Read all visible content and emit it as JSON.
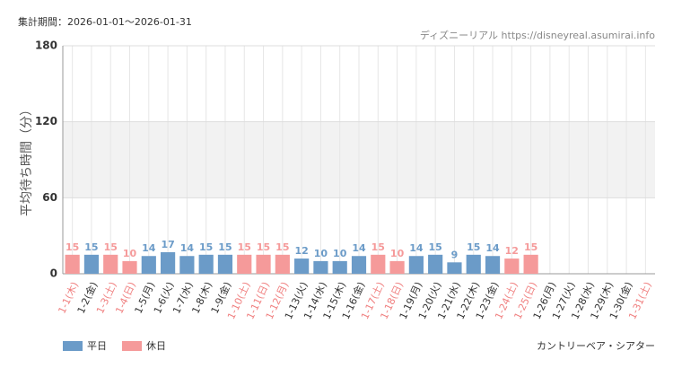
{
  "chart_data": {
    "type": "bar",
    "title": "集計期間：2026-01-01～2026-01-31",
    "source": "ディズニーリアル https://disneyreal.asumirai.info",
    "y_label": "平均待ち時間（分）",
    "attraction": "カントリーベア・シアター",
    "categories": [
      "1-1(木)",
      "1-2(金)",
      "1-3(土)",
      "1-4(日)",
      "1-5(月)",
      "1-6(火)",
      "1-7(水)",
      "1-8(木)",
      "1-9(金)",
      "1-10(土)",
      "1-11(日)",
      "1-12(月)",
      "1-13(火)",
      "1-14(水)",
      "1-15(木)",
      "1-16(金)",
      "1-17(土)",
      "1-18(日)",
      "1-19(月)",
      "1-20(火)",
      "1-21(水)",
      "1-22(木)",
      "1-23(金)",
      "1-24(土)",
      "1-25(日)",
      "1-26(月)",
      "1-27(火)",
      "1-28(水)",
      "1-29(木)",
      "1-30(金)",
      "1-31(土)"
    ],
    "category_colors": [
      "#f08080",
      "#333333",
      "#f08080",
      "#f08080",
      "#333333",
      "#333333",
      "#333333",
      "#333333",
      "#333333",
      "#f08080",
      "#f08080",
      "#f08080",
      "#333333",
      "#333333",
      "#333333",
      "#333333",
      "#f08080",
      "#f08080",
      "#333333",
      "#333333",
      "#333333",
      "#333333",
      "#333333",
      "#f08080",
      "#f08080",
      "#333333",
      "#333333",
      "#333333",
      "#333333",
      "#333333",
      "#f08080"
    ],
    "series": [
      {
        "name": "平日",
        "color": "#6b9bc8",
        "values": [
          null,
          15,
          null,
          null,
          14,
          17,
          14,
          15,
          15,
          null,
          null,
          null,
          12,
          10,
          10,
          14,
          null,
          null,
          14,
          15,
          9,
          15,
          14,
          null,
          null,
          null,
          null,
          null,
          null,
          null,
          null
        ]
      },
      {
        "name": "休日",
        "color": "#f59a9a",
        "values": [
          15,
          null,
          15,
          10,
          null,
          null,
          null,
          null,
          null,
          15,
          15,
          15,
          null,
          null,
          null,
          null,
          15,
          10,
          null,
          null,
          null,
          null,
          null,
          12,
          15,
          null,
          null,
          null,
          null,
          null,
          null
        ]
      }
    ],
    "ylim": [
      0,
      180
    ],
    "yticks": [
      0,
      60,
      120,
      180
    ],
    "grid": true,
    "band": {
      "from": 60,
      "to": 120,
      "color": "#f2f2f2"
    }
  }
}
